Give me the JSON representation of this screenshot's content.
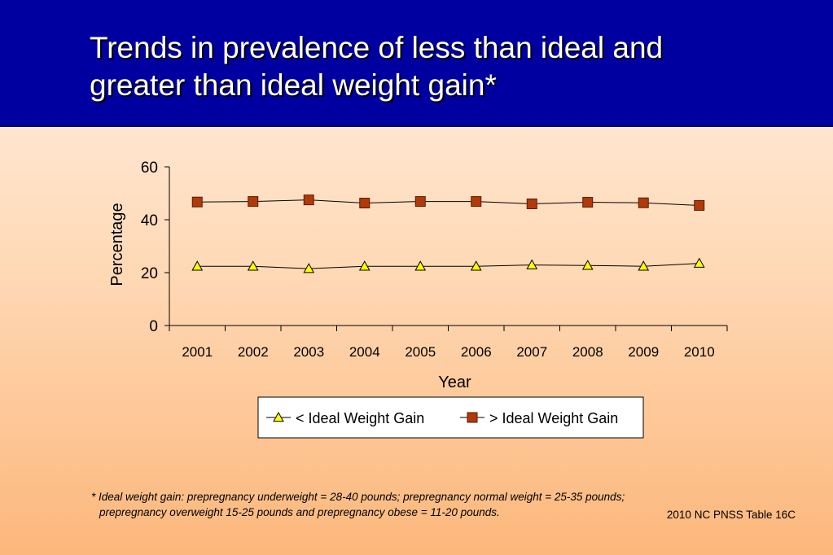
{
  "slide": {
    "title_line1": "Trends in prevalence of less than ideal and",
    "title_line2": "greater than ideal weight gain*",
    "footnote_line1": "*  Ideal weight gain: prepregnancy underweight = 28-40 pounds; prepregnancy normal weight = 25-35 pounds;",
    "footnote_line2": "prepregnancy overweight 15-25 pounds and prepregnancy obese = 11-20 pounds.",
    "source": "2010 NC PNSS Table 16C"
  },
  "chart_data": {
    "type": "line",
    "title": "",
    "xlabel": "Year",
    "ylabel": "Percentage",
    "ylim": [
      0,
      60
    ],
    "yticks": [
      0,
      20,
      40,
      60
    ],
    "grid": false,
    "legend_position": "bottom",
    "categories": [
      "2001",
      "2002",
      "2003",
      "2004",
      "2005",
      "2006",
      "2007",
      "2008",
      "2009",
      "2010"
    ],
    "series": [
      {
        "name": "< Ideal Weight Gain",
        "marker": "triangle",
        "color": "#ffff00",
        "values": [
          22.4,
          22.4,
          21.5,
          22.4,
          22.4,
          22.4,
          22.9,
          22.7,
          22.4,
          23.5
        ]
      },
      {
        "name": "> Ideal Weight Gain",
        "marker": "square",
        "color": "#b03a0a",
        "values": [
          46.7,
          46.9,
          47.5,
          46.3,
          46.9,
          46.9,
          46.0,
          46.6,
          46.4,
          45.4
        ]
      }
    ]
  }
}
